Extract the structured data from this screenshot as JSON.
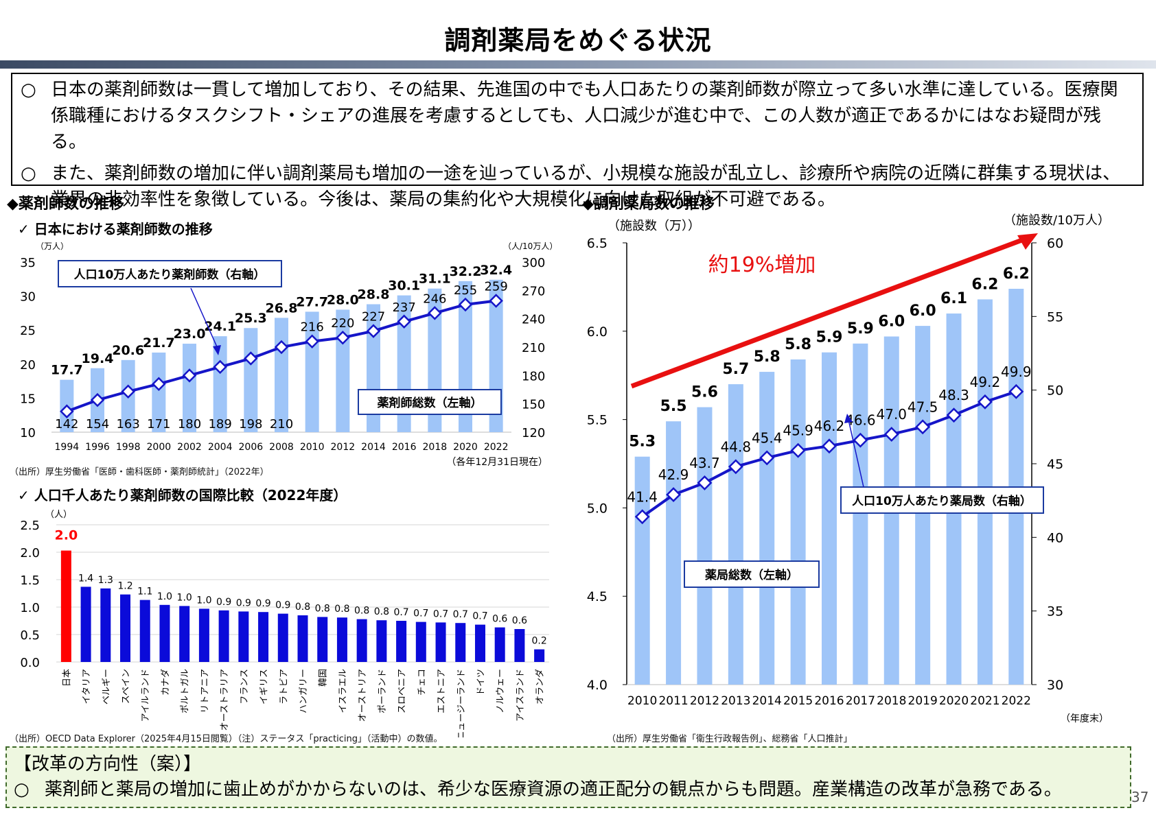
{
  "title": "調剤薬局をめぐる状況",
  "summary": [
    {
      "mark": "○",
      "text": "日本の薬剤師数は一貫して増加しており、その結果、先進国の中でも人口あたりの薬剤師数が際立って多い水準に達している。医療関係職種におけるタスクシフト・シェアの進展を考慮するとしても、人口減少が進む中で、この人数が適正であるかにはなお疑問が残る。"
    },
    {
      "mark": "○",
      "text": "また、薬剤師数の増加に伴い調剤薬局も増加の一途を辿っているが、小規模な施設が乱立し、診療所や病院の近隣に群集する現状は、業界の非効率性を象徴している。今後は、薬局の集約化や大規模化に向けた取組が不可避である。"
    }
  ],
  "left_section_title": "◆薬剤師数の推移",
  "right_section_title": "◆調剤薬局数の推移",
  "chart1_subtitle": "✓ 日本における薬剤師数の推移",
  "chart1_source": "（出所）厚生労働省「医師・歯科医師・薬剤師統計」（2022年）",
  "chart2_subtitle": "✓ 人口千人あたり薬剤師数の国際比較（2022年度）",
  "chart2_source": "（出所）OECD Data Explorer（2025年4月15日閲覧）（注）ステータス「practicing」（活動中）の数値。",
  "chart3_source": "（出所）厚生労働省「衛生行政報告例」、総務省「人口推計」",
  "reform": {
    "heading": "【改革の方向性（案）】",
    "mark": "○",
    "text": "薬剤師と薬局の増加に歯止めがかからないのは、希少な医療資源の適正配分の観点からも問題。産業構造の改革が急務である。"
  },
  "page_number": "37",
  "colors": {
    "bar_light": "#9fc5f8",
    "bar_blue": "#0b0bd9",
    "bar_red": "#ff0000",
    "line": "#1515c8",
    "arrow": "#e81010",
    "box_border": "#1a3aa0",
    "label_red": "#ff0000"
  },
  "chart_data": [
    {
      "type": "bar",
      "title": "日本における薬剤師数の推移",
      "categories": [
        "1994",
        "1996",
        "1998",
        "2000",
        "2002",
        "2004",
        "2006",
        "2008",
        "2010",
        "2012",
        "2014",
        "2016",
        "2018",
        "2020",
        "2022"
      ],
      "series": [
        {
          "name": "薬剤師総数（左軸）",
          "axis": "left",
          "values": [
            17.7,
            19.4,
            20.6,
            21.7,
            23.0,
            24.1,
            25.3,
            26.8,
            27.7,
            28.0,
            28.8,
            30.1,
            31.1,
            32.2,
            32.4
          ]
        },
        {
          "name": "人口10万人あたり薬剤師数（右軸）",
          "axis": "right",
          "type": "line",
          "values": [
            142,
            154,
            163,
            171,
            180,
            189,
            198,
            210,
            216,
            220,
            227,
            237,
            246,
            255,
            259
          ]
        }
      ],
      "left_unit": "（万人）",
      "right_unit": "（人/10万人）",
      "left_ticks": [
        "10",
        "15",
        "20",
        "25",
        "30",
        "35"
      ],
      "right_ticks": [
        "120",
        "150",
        "180",
        "210",
        "240",
        "270",
        "300"
      ],
      "ylim": [
        10,
        35
      ],
      "y2lim": [
        120,
        300
      ],
      "callout_line": "人口10万人あたり薬剤師数（右軸）",
      "callout_bar": "薬剤師総数（左軸）",
      "note": "（各年12月31日現在）"
    },
    {
      "type": "bar",
      "title": "人口千人あたり薬剤師数の国際比較（2022年度）",
      "ylabel": "（人）",
      "categories": [
        "日本",
        "イタリア",
        "ベルギー",
        "スペイン",
        "アイルランド",
        "カナダ",
        "ポルトガル",
        "リトアニア",
        "オーストラリア",
        "フランス",
        "イギリス",
        "ラトビア",
        "ハンガリー",
        "韓国",
        "イスラエル",
        "オーストリア",
        "ポーランド",
        "スロベニア",
        "チェコ",
        "エストニア",
        "ニュージーランド",
        "ドイツ",
        "ノルウェー",
        "アイスランド",
        "オランダ"
      ],
      "values": [
        2.0,
        1.4,
        1.3,
        1.2,
        1.1,
        1.0,
        1.0,
        1.0,
        0.9,
        0.9,
        0.9,
        0.9,
        0.8,
        0.8,
        0.8,
        0.8,
        0.8,
        0.7,
        0.7,
        0.7,
        0.7,
        0.7,
        0.6,
        0.6,
        0.2
      ],
      "bar_values": [
        2.03,
        1.37,
        1.34,
        1.23,
        1.13,
        1.04,
        1.02,
        0.97,
        0.94,
        0.92,
        0.91,
        0.88,
        0.85,
        0.82,
        0.81,
        0.78,
        0.76,
        0.75,
        0.73,
        0.72,
        0.71,
        0.68,
        0.63,
        0.6,
        0.23
      ],
      "y_ticks": [
        "0.0",
        "0.5",
        "1.0",
        "1.5",
        "2.0",
        "2.5"
      ],
      "ylim": [
        0,
        2.5
      ]
    },
    {
      "type": "bar",
      "title": "調剤薬局数の推移",
      "categories": [
        "2010",
        "2011",
        "2012",
        "2013",
        "2014",
        "2015",
        "2016",
        "2017",
        "2018",
        "2019",
        "2020",
        "2021",
        "2022"
      ],
      "series": [
        {
          "name": "薬局総数（左軸）",
          "axis": "left",
          "values": [
            5.3,
            5.5,
            5.6,
            5.7,
            5.8,
            5.8,
            5.9,
            5.9,
            6.0,
            6.0,
            6.1,
            6.2,
            6.2
          ],
          "bar_values": [
            5.29,
            5.49,
            5.57,
            5.7,
            5.77,
            5.84,
            5.88,
            5.93,
            5.97,
            6.03,
            6.1,
            6.18,
            6.24
          ]
        },
        {
          "name": "人口10万人あたり薬局数（右軸）",
          "axis": "right",
          "type": "line",
          "values": [
            41.4,
            42.9,
            43.7,
            44.8,
            45.4,
            45.9,
            46.2,
            46.6,
            47.0,
            47.5,
            48.3,
            49.2,
            49.9
          ]
        }
      ],
      "left_unit": "（施設数（万））",
      "right_unit": "（施設数/10万人）",
      "left_ticks": [
        "4.0",
        "4.5",
        "5.0",
        "5.5",
        "6.0",
        "6.5"
      ],
      "right_ticks": [
        "30",
        "35",
        "40",
        "45",
        "50",
        "55",
        "60"
      ],
      "ylim": [
        4.0,
        6.5
      ],
      "y2lim": [
        30,
        60
      ],
      "annotation": "約19%増加",
      "callout_line": "人口10万人あたり薬局数（右軸）",
      "callout_bar": "薬局総数（左軸）",
      "xunit": "（年度末）"
    }
  ]
}
